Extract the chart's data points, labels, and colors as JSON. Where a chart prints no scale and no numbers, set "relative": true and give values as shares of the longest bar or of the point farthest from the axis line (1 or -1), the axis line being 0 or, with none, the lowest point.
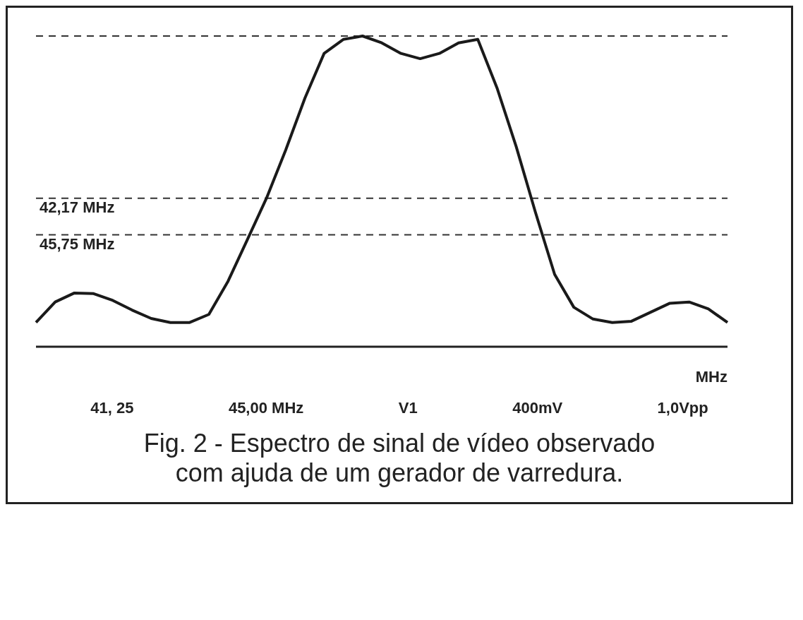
{
  "chart_data": {
    "type": "line",
    "title": "Fig. 2 - Espectro de sinal de vídeo observado com ajuda de um gerador de varredura.",
    "xlabel": "MHz",
    "relative": true,
    "categories": [
      null,
      null,
      null,
      null,
      null,
      null,
      null,
      null,
      null,
      null,
      null,
      null,
      null,
      null,
      null,
      null,
      null,
      null,
      null,
      null,
      null,
      null,
      null,
      null,
      null,
      null,
      null,
      null,
      null,
      null,
      null,
      null,
      null,
      null,
      null,
      null,
      null
    ],
    "series": [
      {
        "color": "#1a1a1a",
        "values": [
          0.078,
          0.144,
          0.173,
          0.171,
          0.149,
          0.118,
          0.091,
          0.078,
          0.078,
          0.104,
          0.211,
          0.344,
          0.478,
          0.633,
          0.8,
          0.944,
          0.989,
          1,
          0.978,
          0.944,
          0.927,
          0.944,
          0.978,
          0.989,
          0.833,
          0.644,
          0.433,
          0.233,
          0.127,
          0.089,
          0.078,
          0.082,
          0.111,
          0.14,
          0.144,
          0.122,
          0.078
        ]
      }
    ],
    "ref_lines": [
      {
        "axis": "y",
        "value": 1,
        "line_style": "dashed"
      },
      {
        "axis": "y",
        "value": 0.478,
        "label": "42,17 MHz",
        "line_style": "dashed"
      },
      {
        "axis": "y",
        "value": 0.36,
        "label": "45,75 MHz",
        "line_style": "dashed"
      }
    ],
    "annotations": [
      "41, 25",
      "45,00 MHz",
      "V1",
      "400mV",
      "1,0Vpp"
    ],
    "legend": false,
    "grid": false
  }
}
